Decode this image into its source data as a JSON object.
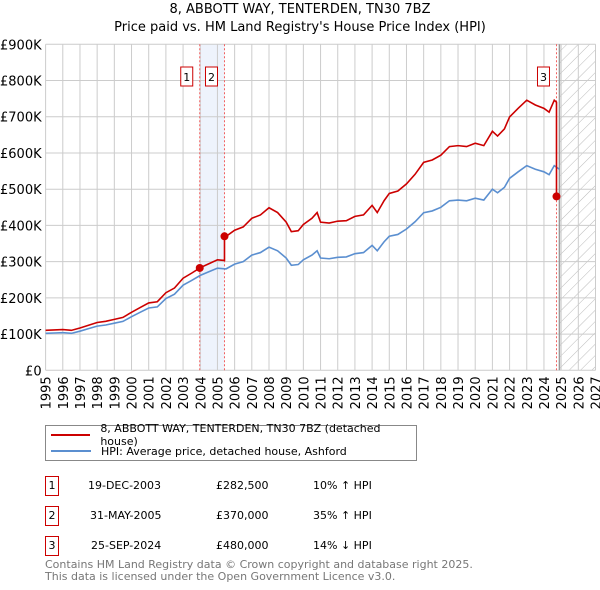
{
  "title": "8, ABBOTT WAY, TENTERDEN, TN30 7BZ",
  "subtitle": "Price paid vs. HM Land Registry's House Price Index (HPI)",
  "chart_data": {
    "type": "line",
    "title": "8, ABBOTT WAY, TENTERDEN, TN30 7BZ",
    "subtitle": "Price paid vs. HM Land Registry's House Price Index (HPI)",
    "ylim": [
      0,
      900000
    ],
    "xlim": [
      1995,
      2027
    ],
    "yticks": [
      {
        "v": 0,
        "label": "£0"
      },
      {
        "v": 100000,
        "label": "£100K"
      },
      {
        "v": 200000,
        "label": "£200K"
      },
      {
        "v": 300000,
        "label": "£300K"
      },
      {
        "v": 400000,
        "label": "£400K"
      },
      {
        "v": 500000,
        "label": "£500K"
      },
      {
        "v": 600000,
        "label": "£600K"
      },
      {
        "v": 700000,
        "label": "£700K"
      },
      {
        "v": 800000,
        "label": "£800K"
      },
      {
        "v": 900000,
        "label": "£900K"
      }
    ],
    "xticks": [
      "1995",
      "1996",
      "1997",
      "1998",
      "1999",
      "2000",
      "2001",
      "2002",
      "2003",
      "2004",
      "2005",
      "2006",
      "2007",
      "2008",
      "2009",
      "2010",
      "2011",
      "2012",
      "2013",
      "2014",
      "2015",
      "2016",
      "2017",
      "2018",
      "2019",
      "2020",
      "2021",
      "2022",
      "2023",
      "2024",
      "2025",
      "2026",
      "2027"
    ],
    "grid": true,
    "forecast_start": 2024.9,
    "hpi_series": {
      "name": "HPI: Average price, detached house, Ashford",
      "color": "#5b8fd0",
      "x": [
        1995,
        1995.5,
        1996,
        1996.5,
        1997,
        1997.5,
        1998,
        1998.5,
        1999,
        1999.5,
        2000,
        2000.5,
        2001,
        2001.5,
        2002,
        2002.5,
        2003,
        2003.5,
        2004,
        2004.5,
        2005,
        2005.5,
        2006,
        2006.5,
        2007,
        2007.5,
        2008,
        2008.5,
        2009,
        2009.3,
        2009.7,
        2010,
        2010.5,
        2010.8,
        2011,
        2011.5,
        2012,
        2012.5,
        2013,
        2013.5,
        2014,
        2014.3,
        2014.7,
        2015,
        2015.5,
        2016,
        2016.5,
        2017,
        2017.5,
        2018,
        2018.5,
        2019,
        2019.5,
        2020,
        2020.5,
        2021,
        2021.3,
        2021.7,
        2022,
        2022.5,
        2023,
        2023.5,
        2024,
        2024.3,
        2024.6,
        2024.9
      ],
      "values": [
        102000,
        103000,
        104000,
        102000,
        108000,
        115000,
        122000,
        125000,
        130000,
        135000,
        148000,
        160000,
        172000,
        175000,
        198000,
        210000,
        235000,
        248000,
        262000,
        272000,
        282000,
        280000,
        293000,
        300000,
        318000,
        325000,
        340000,
        330000,
        310000,
        290000,
        292000,
        305000,
        318000,
        330000,
        310000,
        308000,
        312000,
        313000,
        322000,
        325000,
        345000,
        330000,
        355000,
        370000,
        375000,
        390000,
        410000,
        435000,
        440000,
        450000,
        468000,
        470000,
        468000,
        475000,
        470000,
        500000,
        490000,
        505000,
        530000,
        548000,
        565000,
        555000,
        548000,
        540000,
        565000,
        555000
      ]
    },
    "property_series": {
      "name": "8, ABBOTT WAY, TENTERDEN, TN30 7BZ (detached house)",
      "color": "#cc0000"
    },
    "sales": [
      {
        "id": "1",
        "x": 2003.97,
        "value": 282500
      },
      {
        "id": "2",
        "x": 2005.41,
        "value": 370000
      },
      {
        "id": "3",
        "x": 2024.73,
        "value": 480000
      }
    ]
  },
  "legend": {
    "property": "8, ABBOTT WAY, TENTERDEN, TN30 7BZ (detached house)",
    "hpi": "HPI: Average price, detached house, Ashford"
  },
  "transactions": [
    {
      "num": "1",
      "date": "19-DEC-2003",
      "price": "£282,500",
      "hpi": "10% ↑ HPI"
    },
    {
      "num": "2",
      "date": "31-MAY-2005",
      "price": "£370,000",
      "hpi": "35% ↑ HPI"
    },
    {
      "num": "3",
      "date": "25-SEP-2024",
      "price": "£480,000",
      "hpi": "14% ↓ HPI"
    }
  ],
  "footer": {
    "line1": "Contains HM Land Registry data © Crown copyright and database right 2025.",
    "line2": "This data is licensed under the Open Government Licence v3.0."
  }
}
